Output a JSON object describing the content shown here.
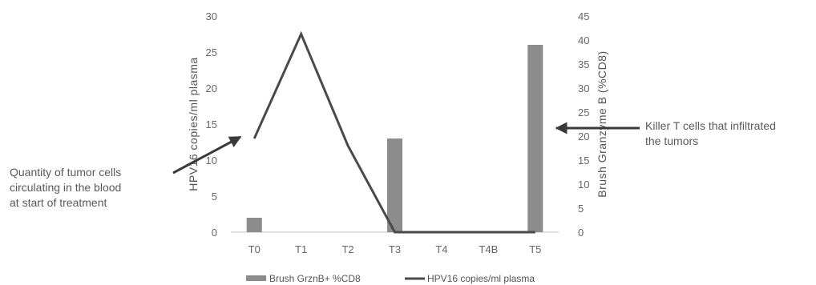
{
  "chart_data": {
    "type": "bar+line",
    "categories": [
      "T0",
      "T1",
      "T2",
      "T3",
      "T4",
      "T4B",
      "T5"
    ],
    "series": [
      {
        "name": "Brush GrznB+ %CD8",
        "kind": "bar",
        "axis": "right",
        "values": [
          3,
          null,
          null,
          19.5,
          null,
          null,
          39
        ],
        "color": "#8c8c8c"
      },
      {
        "name": "HPV16 copies/ml plasma",
        "kind": "line",
        "axis": "left",
        "values": [
          13,
          27.5,
          12,
          0,
          0,
          0,
          0
        ],
        "color": "#4a4a4a"
      }
    ],
    "left_axis": {
      "label": "HPV16 copies/ml plasma",
      "range": [
        0,
        30
      ],
      "ticks": [
        "0",
        "5",
        "10",
        "15",
        "20",
        "25",
        "30"
      ]
    },
    "right_axis": {
      "label": "Brush Granzyme B (%CD8)",
      "range": [
        0,
        45
      ],
      "ticks": [
        "0",
        "5",
        "10",
        "15",
        "20",
        "25",
        "30",
        "35",
        "40",
        "45"
      ]
    },
    "legend": [
      "Brush GrznB+ %CD8",
      "HPV16 copies/ml plasma"
    ],
    "legend_position": "bottom",
    "grid": false
  },
  "annotations": {
    "left": [
      "Quantity of tumor cells",
      "circulating in the blood",
      "at start of treatment"
    ],
    "right": [
      "Killer T cells that infiltrated",
      "the tumors"
    ]
  },
  "colors": {
    "arrow": "#3a3a3a",
    "axis_line": "#bfbfbf"
  }
}
